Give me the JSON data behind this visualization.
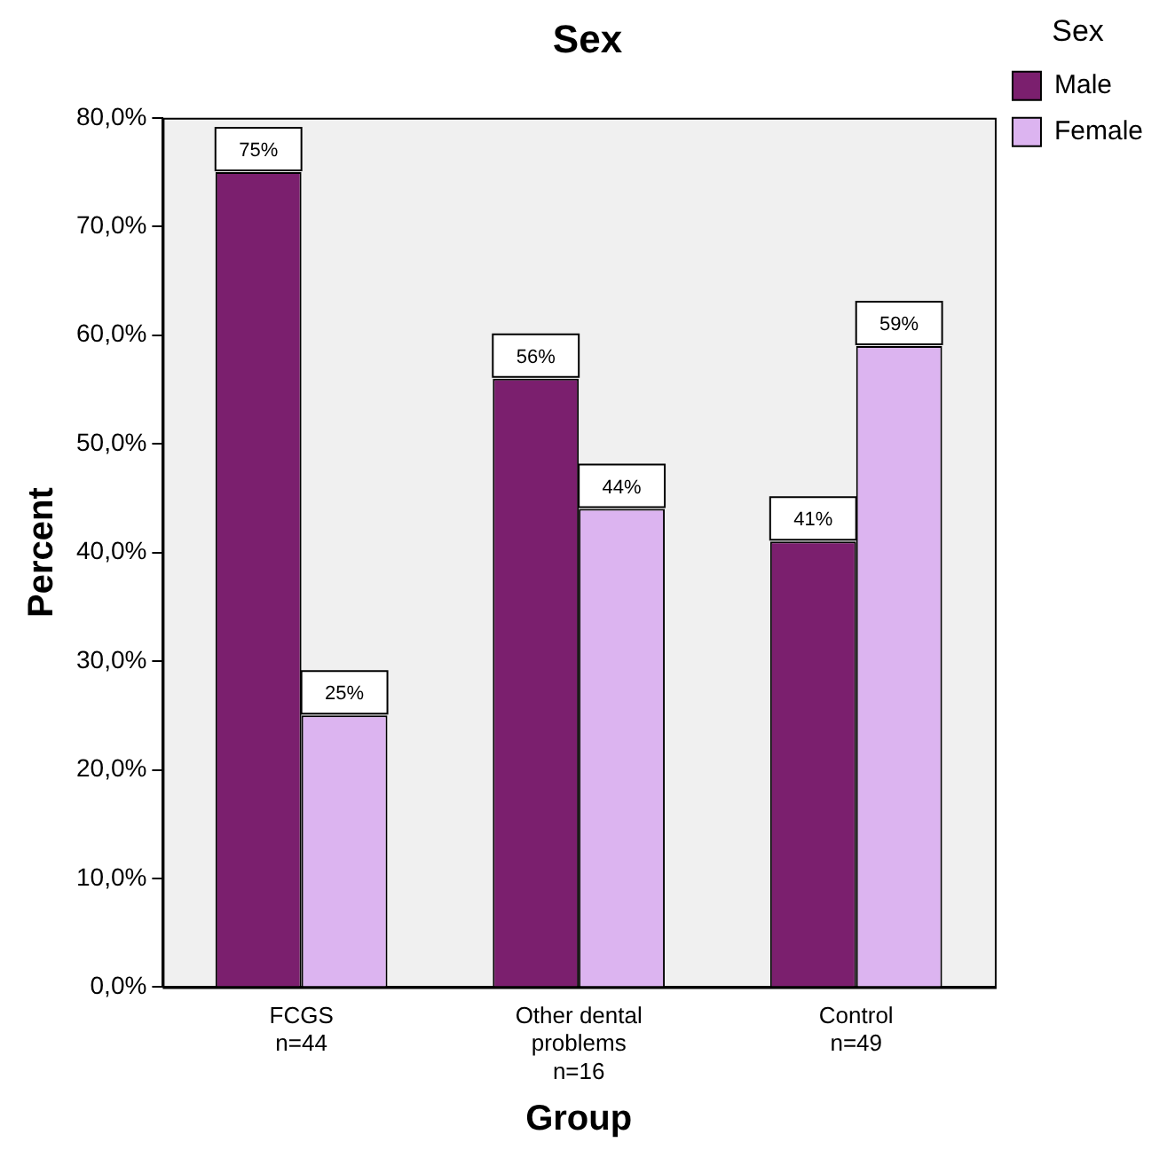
{
  "chart_data": {
    "type": "bar",
    "title": "Sex",
    "xlabel": "Group",
    "ylabel": "Percent",
    "legend_title": "Sex",
    "legend": "top right",
    "grid": false,
    "categories": [
      "FCGS\nn=44",
      "Other dental\nproblems\nn=16",
      "Control\nn=49"
    ],
    "series": [
      {
        "name": "Male",
        "color": "#7b1f6e",
        "values": [
          75,
          56,
          41
        ],
        "value_labels": [
          "75%",
          "56%",
          "41%"
        ]
      },
      {
        "name": "Female",
        "color": "#dcb4f0",
        "values": [
          25,
          44,
          59
        ],
        "value_labels": [
          "25%",
          "44%",
          "59%"
        ]
      }
    ],
    "ylim": [
      0,
      80
    ],
    "yticks": [
      {
        "value": 0,
        "label": "0,0%"
      },
      {
        "value": 10,
        "label": "10,0%"
      },
      {
        "value": 20,
        "label": "20,0%"
      },
      {
        "value": 30,
        "label": "30,0%"
      },
      {
        "value": 40,
        "label": "40,0%"
      },
      {
        "value": 50,
        "label": "50,0%"
      },
      {
        "value": 60,
        "label": "60,0%"
      },
      {
        "value": 70,
        "label": "70,0%"
      },
      {
        "value": 80,
        "label": "80,0%"
      }
    ]
  }
}
